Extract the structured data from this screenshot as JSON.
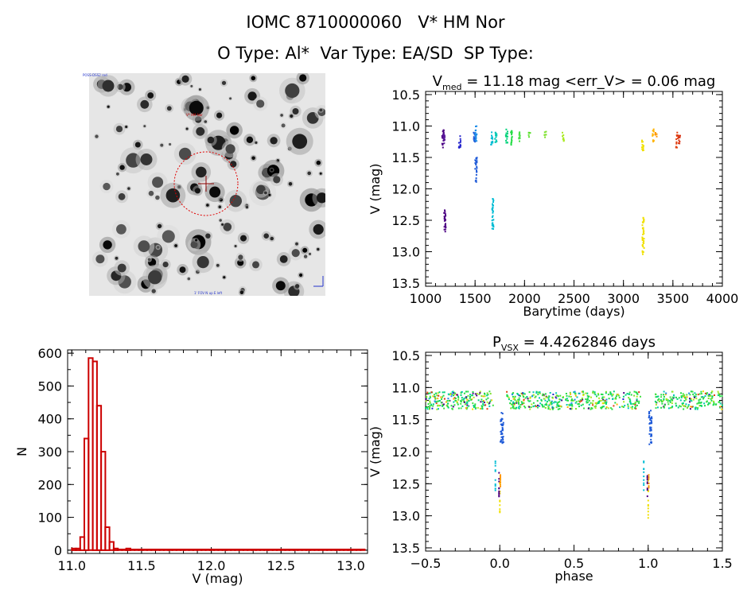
{
  "header": {
    "title": "IOMC 8710000060   V* HM Nor",
    "subtitle": "O Type: Al*  Var Type: EA/SD  SP Type:"
  },
  "finder": {
    "label_top_left": "POSS-DSS2 red",
    "label_target": "V* HM Nor",
    "label_bottom": "1' FOV  N up E left",
    "image_note": "grayscale sky image with red circle around target"
  },
  "chart_data": [
    {
      "id": "lightcurve",
      "type": "scatter",
      "title_parts": {
        "main": "V",
        "sub": "med",
        "rest": " = 11.18 mag <err_V> = 0.06 mag"
      },
      "xlabel": "Barytime (days)",
      "ylabel": "V (mag)",
      "xlim": [
        1000,
        4000
      ],
      "ylim": [
        13.55,
        10.45
      ],
      "y_inverted": true,
      "xticks": [
        1000,
        1500,
        2000,
        2500,
        3000,
        3500,
        4000
      ],
      "yticks": [
        10.5,
        11.0,
        11.5,
        12.0,
        12.5,
        13.0,
        13.5
      ],
      "xticklabels": [
        "1000",
        "1500",
        "2000",
        "2500",
        "3000",
        "3500",
        "4000"
      ],
      "yticklabels": [
        "10.5",
        "11.0",
        "11.5",
        "12.0",
        "12.5",
        "13.0",
        "13.5"
      ],
      "color_scale": "rainbow by time",
      "groups": [
        {
          "x": 1175,
          "y_lo": 11.05,
          "y_hi": 11.35,
          "color": "#4b0082"
        },
        {
          "x": 1185,
          "y_lo": 11.1,
          "y_hi": 11.3,
          "color": "#5a1a9a"
        },
        {
          "x": 1195,
          "y_lo": 12.3,
          "y_hi": 12.7,
          "color": "#4b0082"
        },
        {
          "x": 1345,
          "y_lo": 11.15,
          "y_hi": 11.35,
          "color": "#2222cc"
        },
        {
          "x": 1495,
          "y_lo": 11.1,
          "y_hi": 11.3,
          "color": "#1e5ad8"
        },
        {
          "x": 1510,
          "y_lo": 11.0,
          "y_hi": 11.25,
          "color": "#1e8ce8"
        },
        {
          "x": 1510,
          "y_lo": 11.5,
          "y_hi": 11.9,
          "color": "#1e5ad8"
        },
        {
          "x": 1670,
          "y_lo": 11.1,
          "y_hi": 11.3,
          "color": "#00bcd4"
        },
        {
          "x": 1680,
          "y_lo": 12.15,
          "y_hi": 12.65,
          "color": "#00bcd4"
        },
        {
          "x": 1710,
          "y_lo": 11.1,
          "y_hi": 11.3,
          "color": "#00c8b4"
        },
        {
          "x": 1820,
          "y_lo": 11.05,
          "y_hi": 11.3,
          "color": "#00d27a"
        },
        {
          "x": 1870,
          "y_lo": 11.05,
          "y_hi": 11.3,
          "color": "#22dd44"
        },
        {
          "x": 1950,
          "y_lo": 11.08,
          "y_hi": 11.25,
          "color": "#44e044"
        },
        {
          "x": 2050,
          "y_lo": 11.1,
          "y_hi": 11.2,
          "color": "#5ce030"
        },
        {
          "x": 2210,
          "y_lo": 11.08,
          "y_hi": 11.18,
          "color": "#7ae028"
        },
        {
          "x": 2390,
          "y_lo": 11.1,
          "y_hi": 11.25,
          "color": "#aaea22"
        },
        {
          "x": 3195,
          "y_lo": 11.15,
          "y_hi": 11.4,
          "color": "#f0e000"
        },
        {
          "x": 3200,
          "y_lo": 12.45,
          "y_hi": 13.05,
          "color": "#f0e000"
        },
        {
          "x": 3300,
          "y_lo": 11.05,
          "y_hi": 11.25,
          "color": "#ffb400"
        },
        {
          "x": 3330,
          "y_lo": 11.1,
          "y_hi": 11.2,
          "color": "#ff9800"
        },
        {
          "x": 3540,
          "y_lo": 11.1,
          "y_hi": 11.35,
          "color": "#e04010"
        },
        {
          "x": 3565,
          "y_lo": 11.15,
          "y_hi": 11.3,
          "color": "#d83010"
        }
      ]
    },
    {
      "id": "histogram",
      "type": "bar",
      "xlabel": "V (mag)",
      "ylabel": "N",
      "xlim": [
        10.97,
        13.12
      ],
      "ylim": [
        -10,
        610
      ],
      "xticks": [
        11.0,
        11.5,
        12.0,
        12.5,
        13.0
      ],
      "yticks": [
        0,
        100,
        200,
        300,
        400,
        500,
        600
      ],
      "xticklabels": [
        "11.0",
        "11.5",
        "12.0",
        "12.5",
        "13.0"
      ],
      "yticklabels": [
        "0",
        "100",
        "200",
        "300",
        "400",
        "500",
        "600"
      ],
      "bin_width": 0.03,
      "bin_start": 11.0,
      "values": [
        5,
        5,
        40,
        340,
        585,
        575,
        440,
        300,
        70,
        25,
        5,
        2,
        2,
        5,
        2,
        2,
        2,
        2,
        2,
        2,
        2,
        2,
        2,
        2,
        2,
        2,
        2,
        2,
        2,
        2,
        2,
        2,
        2,
        2,
        2,
        2,
        2,
        2,
        2,
        2,
        2,
        2,
        2,
        2,
        2,
        2,
        2,
        2,
        2,
        2,
        2,
        2,
        2,
        2,
        2,
        2,
        2,
        2,
        2,
        2,
        2,
        2,
        2,
        2,
        2,
        2,
        2,
        2,
        2,
        2
      ],
      "color": "#cc0000"
    },
    {
      "id": "phased",
      "type": "scatter",
      "title_parts": {
        "main": "P",
        "sub": "VSX",
        "rest": " = 4.4262846 days"
      },
      "xlabel": "phase",
      "ylabel": "V (mag)",
      "xlim": [
        -0.5,
        1.5
      ],
      "ylim": [
        13.55,
        10.45
      ],
      "y_inverted": true,
      "xticks": [
        -0.5,
        0.0,
        0.5,
        1.0,
        1.5
      ],
      "yticks": [
        10.5,
        11.0,
        11.5,
        12.0,
        12.5,
        13.0,
        13.5
      ],
      "xticklabels": [
        "−0.5",
        "0.0",
        "0.5",
        "1.0",
        "1.5"
      ],
      "yticklabels": [
        "10.5",
        "11.0",
        "11.5",
        "12.0",
        "12.5",
        "13.0",
        "13.5"
      ],
      "eclipse_phase": 0.0,
      "eclipse_depth_mag": 13.05,
      "out_of_eclipse_mag": 11.2
    }
  ]
}
